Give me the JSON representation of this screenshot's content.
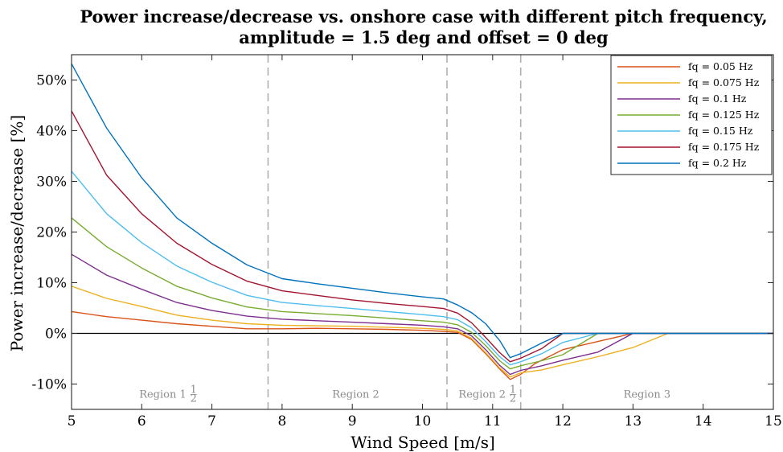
{
  "chart_data": {
    "type": "line",
    "title_line1": "Power increase/decrease vs. onshore case with different pitch frequency,",
    "title_line2": "amplitude = 1.5 deg and offset = 0 deg",
    "xlabel": "Wind Speed [m/s]",
    "ylabel": "Power increase/decrease [%]",
    "xlim": [
      5,
      15
    ],
    "ylim": [
      -15,
      55
    ],
    "xticks": [
      5,
      6,
      7,
      8,
      9,
      10,
      11,
      12,
      13,
      14,
      15
    ],
    "yticks": [
      -10,
      0,
      10,
      20,
      30,
      40,
      50
    ],
    "ytick_labels": [
      "-10%",
      "0%",
      "10%",
      "20%",
      "30%",
      "40%",
      "50%"
    ],
    "zero_line": 0,
    "grid": false,
    "legend_position": "top-right",
    "region_boundaries": [
      7.8,
      10.35,
      11.4
    ],
    "regions": [
      {
        "label": "Region 1",
        "frac_num": "1",
        "frac_den": "2",
        "x": 6.3
      },
      {
        "label": "Region 2",
        "frac_num": "",
        "frac_den": "",
        "x": 9.05
      },
      {
        "label": "Region 2",
        "frac_num": "1",
        "frac_den": "2",
        "x": 10.85
      },
      {
        "label": "Region 3",
        "frac_num": "",
        "frac_den": "",
        "x": 13.2
      }
    ],
    "region_label_y": -12.7,
    "series": [
      {
        "name": "fq = 0.05 Hz",
        "color": "#D95319",
        "x": [
          5,
          5.5,
          6,
          6.5,
          7,
          7.5,
          8,
          8.5,
          9,
          9.5,
          10,
          10.3,
          10.5,
          10.7,
          10.9,
          11.1,
          11.25,
          11.4,
          11.6,
          12,
          12.5,
          13,
          13.5,
          14,
          14.5,
          15
        ],
        "y": [
          4.3,
          3.3,
          2.6,
          1.9,
          1.4,
          0.9,
          0.9,
          1.0,
          0.9,
          0.8,
          0.6,
          0.4,
          0.2,
          -1.2,
          -4.0,
          -7.0,
          -9.1,
          -8.1,
          -6.0,
          -3.2,
          -1.6,
          0,
          0,
          0,
          0,
          0
        ]
      },
      {
        "name": "fq = 0.075 Hz",
        "color": "#EDB120",
        "x": [
          5,
          5.5,
          6,
          6.5,
          7,
          7.5,
          8,
          8.5,
          9,
          9.5,
          10,
          10.3,
          10.5,
          10.7,
          10.9,
          11.1,
          11.25,
          11.4,
          11.7,
          12,
          12.5,
          13,
          13.5,
          14,
          14.5,
          15
        ],
        "y": [
          9.3,
          6.9,
          5.3,
          3.6,
          2.6,
          1.9,
          1.6,
          1.5,
          1.4,
          1.2,
          1.0,
          0.8,
          0.5,
          -1.0,
          -3.8,
          -6.8,
          -8.6,
          -7.8,
          -7.2,
          -6.2,
          -4.6,
          -2.8,
          0,
          0,
          0,
          0
        ]
      },
      {
        "name": "fq = 0.1 Hz",
        "color": "#7E2F8E",
        "x": [
          5,
          5.5,
          6,
          6.5,
          7,
          7.5,
          8,
          8.5,
          9,
          9.5,
          10,
          10.3,
          10.5,
          10.7,
          10.9,
          11.1,
          11.25,
          11.4,
          11.7,
          12,
          12.5,
          13,
          13.5,
          14,
          14.5,
          15
        ],
        "y": [
          15.6,
          11.5,
          8.7,
          6.1,
          4.5,
          3.4,
          2.8,
          2.5,
          2.2,
          1.9,
          1.6,
          1.3,
          0.9,
          -0.5,
          -3.2,
          -6.3,
          -8.1,
          -7.3,
          -6.4,
          -5.3,
          -3.7,
          0,
          0,
          0,
          0,
          0
        ]
      },
      {
        "name": "fq = 0.125 Hz",
        "color": "#77AC30",
        "x": [
          5,
          5.5,
          6,
          6.5,
          7,
          7.5,
          8,
          8.5,
          9,
          9.5,
          10,
          10.3,
          10.5,
          10.7,
          10.9,
          11.1,
          11.25,
          11.4,
          11.7,
          12,
          12.5,
          13,
          13.5,
          14,
          14.5,
          15
        ],
        "y": [
          22.8,
          17.1,
          12.9,
          9.3,
          7.0,
          5.2,
          4.3,
          3.9,
          3.5,
          3.0,
          2.5,
          2.2,
          1.7,
          0.2,
          -2.4,
          -5.4,
          -7.0,
          -6.4,
          -5.4,
          -4.2,
          0,
          0,
          0,
          0,
          0,
          0
        ]
      },
      {
        "name": "fq = 0.15 Hz",
        "color": "#4DBEEE",
        "x": [
          5,
          5.5,
          6,
          6.5,
          7,
          7.5,
          8,
          8.5,
          9,
          9.5,
          10,
          10.3,
          10.5,
          10.7,
          10.9,
          11.1,
          11.25,
          11.4,
          11.7,
          12,
          12.5,
          13,
          13.5,
          14,
          14.5,
          15
        ],
        "y": [
          32.0,
          23.6,
          17.9,
          13.3,
          10.1,
          7.5,
          6.1,
          5.5,
          4.9,
          4.3,
          3.7,
          3.3,
          2.7,
          1.1,
          -1.6,
          -4.6,
          -6.2,
          -5.6,
          -4.0,
          -1.8,
          0,
          0,
          0,
          0,
          0,
          0
        ]
      },
      {
        "name": "fq = 0.175 Hz",
        "color": "#A2142F",
        "x": [
          5,
          5.5,
          6,
          6.5,
          7,
          7.5,
          8,
          8.5,
          9,
          9.5,
          10,
          10.3,
          10.5,
          10.7,
          10.9,
          11.1,
          11.25,
          11.4,
          11.7,
          12,
          12.5,
          13,
          13.5,
          14,
          14.5,
          15
        ],
        "y": [
          43.9,
          31.2,
          23.6,
          17.8,
          13.6,
          10.3,
          8.4,
          7.5,
          6.6,
          5.9,
          5.3,
          4.9,
          4.0,
          2.1,
          -0.8,
          -3.8,
          -5.6,
          -4.9,
          -3.0,
          0,
          0,
          0,
          0,
          0,
          0,
          0
        ]
      },
      {
        "name": "fq = 0.2 Hz",
        "color": "#0072BD",
        "x": [
          5,
          5.5,
          6,
          6.5,
          7,
          7.5,
          8,
          8.5,
          9,
          9.5,
          10,
          10.3,
          10.5,
          10.7,
          10.9,
          11.1,
          11.25,
          11.4,
          11.7,
          12,
          12.5,
          13,
          13.5,
          14,
          14.5,
          15
        ],
        "y": [
          53.2,
          40.5,
          30.7,
          22.8,
          17.8,
          13.5,
          10.8,
          9.8,
          8.9,
          8.0,
          7.2,
          6.8,
          5.6,
          4.1,
          1.9,
          -1.4,
          -4.8,
          -4.0,
          -1.9,
          0,
          0,
          0,
          0,
          0,
          0,
          0
        ]
      }
    ]
  }
}
